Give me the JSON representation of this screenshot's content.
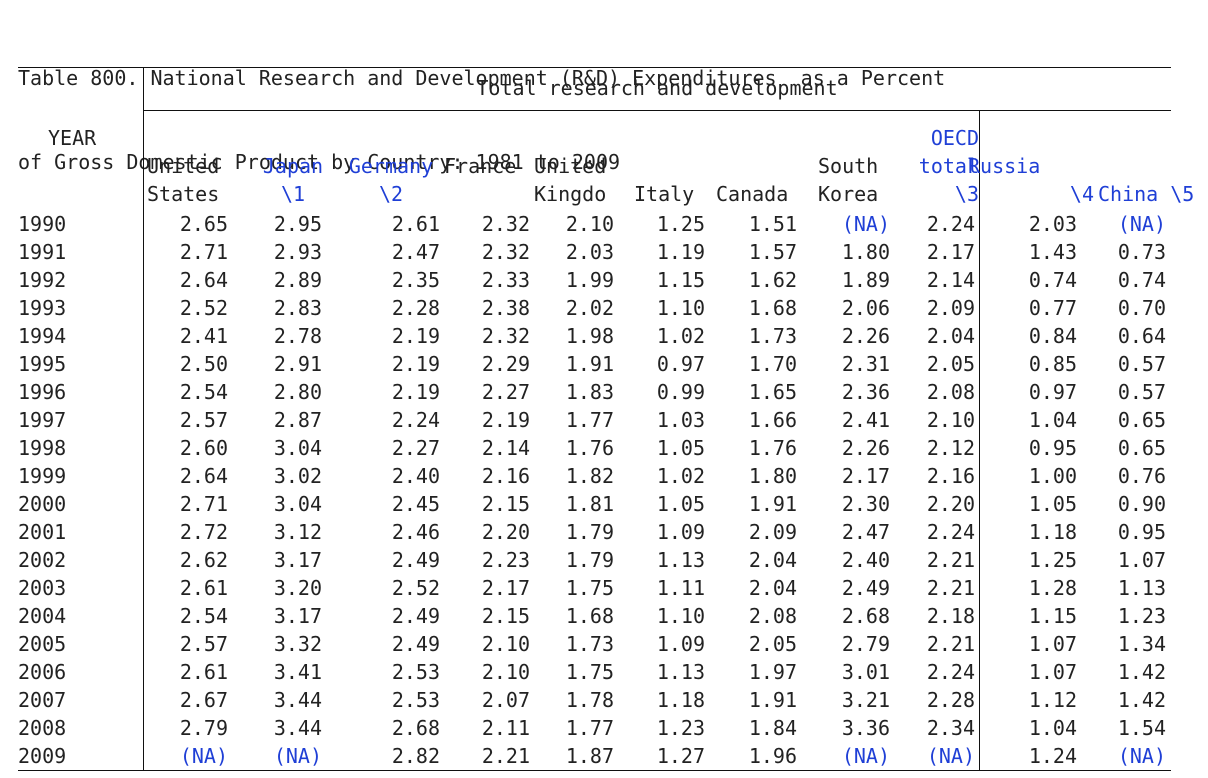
{
  "title_line1": "Table 800. National Research and Development (R&D) Expenditures  as a Percent",
  "title_line2": "of Gross Domestic Product by Country: 1981 to 2009",
  "group_header": "Total research and development",
  "year_header": "YEAR",
  "columns": [
    {
      "lines": [
        "United",
        "States"
      ],
      "link": false
    },
    {
      "lines": [
        "Japan",
        "\\1"
      ],
      "link": true
    },
    {
      "lines": [
        "Germany",
        "\\2"
      ],
      "link": true
    },
    {
      "lines": [
        "France",
        ""
      ],
      "link": false
    },
    {
      "lines": [
        "United",
        "Kingdo"
      ],
      "link": false
    },
    {
      "lines": [
        "",
        "Italy"
      ],
      "link": false
    },
    {
      "lines": [
        "",
        "Canada"
      ],
      "link": false
    },
    {
      "lines": [
        "South",
        "Korea"
      ],
      "link": false
    },
    {
      "lines": [
        "OECD",
        "total",
        "\\3"
      ],
      "link": true
    },
    {
      "lines": [
        "Russia",
        "\\4"
      ],
      "link": true
    },
    {
      "lines": [
        "",
        "China \\5"
      ],
      "link": true
    }
  ],
  "rows": [
    {
      "year": "1990",
      "values": [
        "2.65",
        "2.95",
        "2.61",
        "2.32",
        "2.10",
        "1.25",
        "1.51",
        "(NA)",
        "2.24",
        "2.03",
        "(NA)"
      ]
    },
    {
      "year": "1991",
      "values": [
        "2.71",
        "2.93",
        "2.47",
        "2.32",
        "2.03",
        "1.19",
        "1.57",
        "1.80",
        "2.17",
        "1.43",
        "0.73"
      ]
    },
    {
      "year": "1992",
      "values": [
        "2.64",
        "2.89",
        "2.35",
        "2.33",
        "1.99",
        "1.15",
        "1.62",
        "1.89",
        "2.14",
        "0.74",
        "0.74"
      ]
    },
    {
      "year": "1993",
      "values": [
        "2.52",
        "2.83",
        "2.28",
        "2.38",
        "2.02",
        "1.10",
        "1.68",
        "2.06",
        "2.09",
        "0.77",
        "0.70"
      ]
    },
    {
      "year": "1994",
      "values": [
        "2.41",
        "2.78",
        "2.19",
        "2.32",
        "1.98",
        "1.02",
        "1.73",
        "2.26",
        "2.04",
        "0.84",
        "0.64"
      ]
    },
    {
      "year": "1995",
      "values": [
        "2.50",
        "2.91",
        "2.19",
        "2.29",
        "1.91",
        "0.97",
        "1.70",
        "2.31",
        "2.05",
        "0.85",
        "0.57"
      ]
    },
    {
      "year": "1996",
      "values": [
        "2.54",
        "2.80",
        "2.19",
        "2.27",
        "1.83",
        "0.99",
        "1.65",
        "2.36",
        "2.08",
        "0.97",
        "0.57"
      ]
    },
    {
      "year": "1997",
      "values": [
        "2.57",
        "2.87",
        "2.24",
        "2.19",
        "1.77",
        "1.03",
        "1.66",
        "2.41",
        "2.10",
        "1.04",
        "0.65"
      ]
    },
    {
      "year": "1998",
      "values": [
        "2.60",
        "3.04",
        "2.27",
        "2.14",
        "1.76",
        "1.05",
        "1.76",
        "2.26",
        "2.12",
        "0.95",
        "0.65"
      ]
    },
    {
      "year": "1999",
      "values": [
        "2.64",
        "3.02",
        "2.40",
        "2.16",
        "1.82",
        "1.02",
        "1.80",
        "2.17",
        "2.16",
        "1.00",
        "0.76"
      ]
    },
    {
      "year": "2000",
      "values": [
        "2.71",
        "3.04",
        "2.45",
        "2.15",
        "1.81",
        "1.05",
        "1.91",
        "2.30",
        "2.20",
        "1.05",
        "0.90"
      ]
    },
    {
      "year": "2001",
      "values": [
        "2.72",
        "3.12",
        "2.46",
        "2.20",
        "1.79",
        "1.09",
        "2.09",
        "2.47",
        "2.24",
        "1.18",
        "0.95"
      ]
    },
    {
      "year": "2002",
      "values": [
        "2.62",
        "3.17",
        "2.49",
        "2.23",
        "1.79",
        "1.13",
        "2.04",
        "2.40",
        "2.21",
        "1.25",
        "1.07"
      ]
    },
    {
      "year": "2003",
      "values": [
        "2.61",
        "3.20",
        "2.52",
        "2.17",
        "1.75",
        "1.11",
        "2.04",
        "2.49",
        "2.21",
        "1.28",
        "1.13"
      ]
    },
    {
      "year": "2004",
      "values": [
        "2.54",
        "3.17",
        "2.49",
        "2.15",
        "1.68",
        "1.10",
        "2.08",
        "2.68",
        "2.18",
        "1.15",
        "1.23"
      ]
    },
    {
      "year": "2005",
      "values": [
        "2.57",
        "3.32",
        "2.49",
        "2.10",
        "1.73",
        "1.09",
        "2.05",
        "2.79",
        "2.21",
        "1.07",
        "1.34"
      ]
    },
    {
      "year": "2006",
      "values": [
        "2.61",
        "3.41",
        "2.53",
        "2.10",
        "1.75",
        "1.13",
        "1.97",
        "3.01",
        "2.24",
        "1.07",
        "1.42"
      ]
    },
    {
      "year": "2007",
      "values": [
        "2.67",
        "3.44",
        "2.53",
        "2.07",
        "1.78",
        "1.18",
        "1.91",
        "3.21",
        "2.28",
        "1.12",
        "1.42"
      ]
    },
    {
      "year": "2008",
      "values": [
        "2.79",
        "3.44",
        "2.68",
        "2.11",
        "1.77",
        "1.23",
        "1.84",
        "3.36",
        "2.34",
        "1.04",
        "1.54"
      ]
    },
    {
      "year": "2009",
      "values": [
        "(NA)",
        "(NA)",
        "2.82",
        "2.21",
        "1.87",
        "1.27",
        "1.96",
        "(NA)",
        "(NA)",
        "1.24",
        "(NA)"
      ]
    }
  ],
  "colors": {
    "link": "#1f3fd6",
    "text": "#222222",
    "rule": "#111111"
  }
}
